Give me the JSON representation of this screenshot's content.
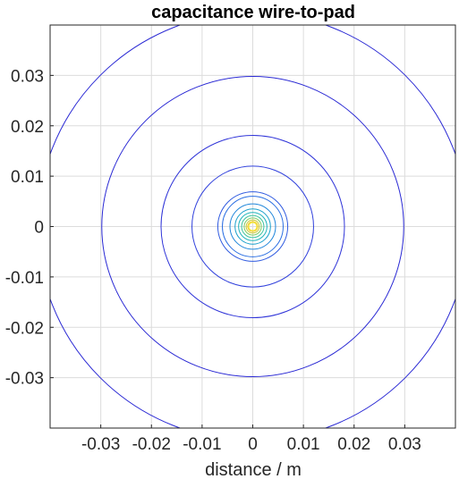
{
  "chart_data": {
    "type": "contour",
    "title": "capacitance wire-to-pad",
    "xlabel": "distance / m",
    "ylabel": "",
    "xlim": [
      -0.04,
      0.04
    ],
    "ylim": [
      -0.04,
      0.04
    ],
    "xticks": [
      -0.03,
      -0.02,
      -0.01,
      0,
      0.01,
      0.02,
      0.03
    ],
    "yticks": [
      -0.03,
      -0.02,
      -0.01,
      0,
      0.01,
      0.02,
      0.03
    ],
    "xtick_labels": [
      "-0.03",
      "-0.02",
      "-0.01",
      "0",
      "0.01",
      "0.02",
      "0.03"
    ],
    "ytick_labels": [
      "-0.03",
      "-0.02",
      "-0.01",
      "0",
      "0.01",
      "0.02",
      "0.03"
    ],
    "grid": true,
    "center": [
      0,
      0
    ],
    "contours": [
      {
        "radius": 0.0425,
        "color": "#2a29d4"
      },
      {
        "radius": 0.0298,
        "color": "#2a29d4"
      },
      {
        "radius": 0.0181,
        "color": "#2f34d8"
      },
      {
        "radius": 0.012,
        "color": "#3040dc"
      },
      {
        "radius": 0.0069,
        "color": "#2f5ae0"
      },
      {
        "radius": 0.006,
        "color": "#2a6ee2"
      },
      {
        "radius": 0.0045,
        "color": "#1f86da"
      },
      {
        "radius": 0.0035,
        "color": "#1aa0cc"
      },
      {
        "radius": 0.0028,
        "color": "#20b4bc"
      },
      {
        "radius": 0.0022,
        "color": "#3cc49c"
      },
      {
        "radius": 0.0017,
        "color": "#80cc64"
      },
      {
        "radius": 0.0013,
        "color": "#c8c83a"
      },
      {
        "radius": 0.001,
        "color": "#f0cc2a"
      },
      {
        "radius": 0.0008,
        "color": "#f5e61e"
      }
    ]
  }
}
